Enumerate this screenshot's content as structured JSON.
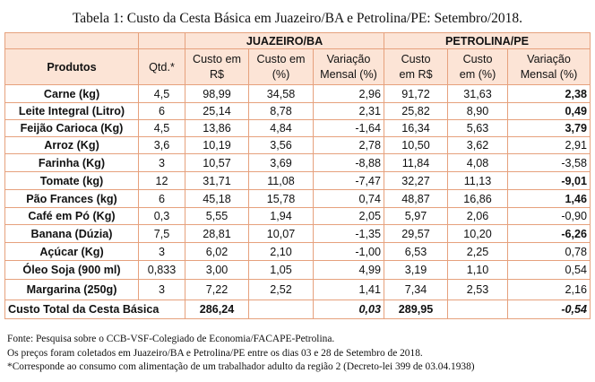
{
  "title": "Tabela 1: Custo da Cesta Básica em Juazeiro/BA e Petrolina/PE: Setembro/2018.",
  "header": {
    "group_juazeiro": "JUAZEIRO/BA",
    "group_petrolina": "PETROLINA/PE",
    "produtos": "Produtos",
    "qtd": "Qtd.*",
    "custo_rs_1": "Custo em",
    "custo_rs_2": "R$",
    "custo_pct_1": "Custo em",
    "custo_pct_2": "(%)",
    "var_1": "Variação",
    "var_2": "Mensal (%)",
    "custo_rs_p1": "Custo",
    "custo_rs_p2": "em R$",
    "custo_pct_p1": "Custo",
    "custo_pct_p2": "em (%)",
    "var_p1": "Variação",
    "var_p2": "Mensal (%)"
  },
  "rows": [
    {
      "produto": "Carne (kg)",
      "qtd": "4,5",
      "j_rs": "98,99",
      "j_pct": "34,58",
      "j_var": "2,96",
      "p_rs": "91,72",
      "p_pct": "31,63",
      "p_var": "2,38",
      "p_bold": true
    },
    {
      "produto": "Leite Integral (Litro)",
      "qtd": "6",
      "j_rs": "25,14",
      "j_pct": "8,78",
      "j_var": "2,31",
      "p_rs": "25,82",
      "p_pct": "8,90",
      "p_var": "0,49",
      "p_bold": true
    },
    {
      "produto": "Feijão Carioca (Kg)",
      "qtd": "4,5",
      "j_rs": "13,86",
      "j_pct": "4,84",
      "j_var": "-1,64",
      "p_rs": "16,34",
      "p_pct": "5,63",
      "p_var": "3,79",
      "p_bold": true
    },
    {
      "produto": "Arroz (Kg)",
      "qtd": "3,6",
      "j_rs": "10,19",
      "j_pct": "3,56",
      "j_var": "2,78",
      "p_rs": "10,50",
      "p_pct": "3,62",
      "p_var": "2,91",
      "p_bold": false
    },
    {
      "produto": "Farinha (Kg)",
      "qtd": "3",
      "j_rs": "10,57",
      "j_pct": "3,69",
      "j_var": "-8,88",
      "p_rs": "11,84",
      "p_pct": "4,08",
      "p_var": "-3,58",
      "p_bold": false
    },
    {
      "produto": "Tomate (kg)",
      "qtd": "12",
      "j_rs": "31,71",
      "j_pct": "11,08",
      "j_var": "-7,47",
      "p_rs": "32,27",
      "p_pct": "11,13",
      "p_var": "-9,01",
      "p_bold": true
    },
    {
      "produto": "Pão Frances (kg)",
      "qtd": "6",
      "j_rs": "45,18",
      "j_pct": "15,78",
      "j_var": "0,74",
      "p_rs": "48,87",
      "p_pct": "16,86",
      "p_var": "1,46",
      "p_bold": true
    },
    {
      "produto": "Café em Pó (Kg)",
      "qtd": "0,3",
      "j_rs": "5,55",
      "j_pct": "1,94",
      "j_var": "2,05",
      "p_rs": "5,97",
      "p_pct": "2,06",
      "p_var": "-0,90",
      "p_bold": false
    },
    {
      "produto": "Banana (Dúzia)",
      "qtd": "7,5",
      "j_rs": "28,81",
      "j_pct": "10,07",
      "j_var": "-1,35",
      "p_rs": "29,57",
      "p_pct": "10,20",
      "p_var": "-6,26",
      "p_bold": true
    },
    {
      "produto": "Açúcar (Kg)",
      "qtd": "3",
      "j_rs": "6,02",
      "j_pct": "2,10",
      "j_var": "-1,00",
      "p_rs": "6,53",
      "p_pct": "2,25",
      "p_var": "0,78",
      "p_bold": false
    },
    {
      "produto": "Óleo Soja (900 ml)",
      "qtd": "0,833",
      "j_rs": "3,00",
      "j_pct": "1,05",
      "j_var": "4,99",
      "p_rs": "3,19",
      "p_pct": "1,10",
      "p_var": "0,54",
      "p_bold": false
    },
    {
      "produto": "Margarina (250g)",
      "qtd": "3",
      "j_rs": "7,22",
      "j_pct": "2,52",
      "j_var": "1,41",
      "p_rs": "7,34",
      "p_pct": "2,53",
      "p_var": "2,16",
      "p_bold": false
    }
  ],
  "total": {
    "label": "Custo Total da Cesta Básica",
    "j_rs": "286,24",
    "j_var": "0,03",
    "p_rs": "289,95",
    "p_var": "-0,54"
  },
  "notes": [
    "Fonte: Pesquisa sobre o CCB-VSF-Colegiado de Economia/FACAPE-Petrolina.",
    "Os preços foram coletados em Juazeiro/BA e Petrolina/PE entre os dias 03 e 28 de Setembro de 2018.",
    "*Corresponde ao consumo com alimentação de um trabalhador adulto da região 2 (Decreto-lei 399 de 03.04.1938)"
  ],
  "colors": {
    "header_bg": "#fce4d6",
    "border": "#e6a17d"
  }
}
